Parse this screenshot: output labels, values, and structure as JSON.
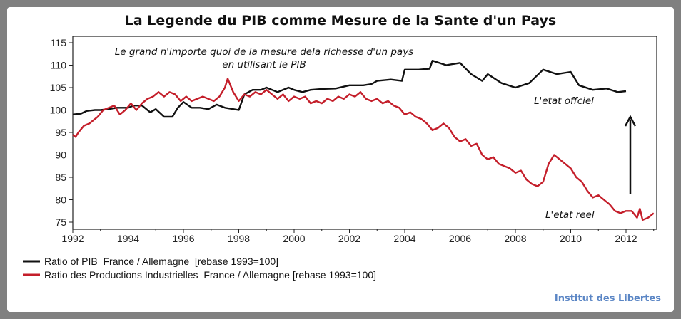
{
  "chart_data": {
    "type": "line",
    "title": "La Legende du PIB comme Mesure de la Sante d'un Pays",
    "xlim": [
      1992,
      2013
    ],
    "ylim": [
      74,
      115
    ],
    "x_ticks": [
      "1992",
      "1994",
      "1996",
      "1998",
      "2000",
      "2002",
      "2004",
      "2006",
      "2008",
      "2010",
      "2012"
    ],
    "y_ticks": [
      "75",
      "80",
      "85",
      "90",
      "95",
      "100",
      "105",
      "110",
      "115"
    ],
    "grid": false,
    "legend_position": "bottom-left",
    "annotations": {
      "top_line1": "Le grand n'importe quoi de la mesure dela richesse d'un pays",
      "top_line2": "en utilisant le PIB",
      "official": "L'etat offciel",
      "real": "L'etat reel"
    },
    "series": [
      {
        "name": "Ratio of PIB  France / Allemagne  [rebase 1993=100]",
        "color": "#111111",
        "points": [
          [
            1992.0,
            99
          ],
          [
            1992.3,
            99.2
          ],
          [
            1992.5,
            99.8
          ],
          [
            1992.8,
            100
          ],
          [
            1993.0,
            100
          ],
          [
            1993.3,
            100.2
          ],
          [
            1993.6,
            100.5
          ],
          [
            1994.0,
            100.5
          ],
          [
            1994.2,
            101
          ],
          [
            1994.5,
            101
          ],
          [
            1994.8,
            99.5
          ],
          [
            1995.0,
            100.2
          ],
          [
            1995.3,
            98.5
          ],
          [
            1995.6,
            98.5
          ],
          [
            1995.8,
            100.5
          ],
          [
            1996.0,
            101.8
          ],
          [
            1996.3,
            100.5
          ],
          [
            1996.6,
            100.5
          ],
          [
            1996.9,
            100.2
          ],
          [
            1997.2,
            101.2
          ],
          [
            1997.5,
            100.5
          ],
          [
            1997.8,
            100.2
          ],
          [
            1998.0,
            100.0
          ],
          [
            1998.2,
            103.5
          ],
          [
            1998.5,
            104.5
          ],
          [
            1998.8,
            104.5
          ],
          [
            1999.0,
            105
          ],
          [
            1999.4,
            104
          ],
          [
            1999.8,
            105
          ],
          [
            2000.0,
            104.5
          ],
          [
            2000.3,
            104
          ],
          [
            2000.6,
            104.5
          ],
          [
            2001.0,
            104.7
          ],
          [
            2001.5,
            104.8
          ],
          [
            2002.0,
            105.5
          ],
          [
            2002.5,
            105.5
          ],
          [
            2002.8,
            105.8
          ],
          [
            2003.0,
            106.5
          ],
          [
            2003.5,
            106.8
          ],
          [
            2003.9,
            106.5
          ],
          [
            2004.0,
            109
          ],
          [
            2004.5,
            109
          ],
          [
            2004.9,
            109.2
          ],
          [
            2005.0,
            111
          ],
          [
            2005.5,
            110
          ],
          [
            2006.0,
            110.5
          ],
          [
            2006.4,
            108
          ],
          [
            2006.8,
            106.5
          ],
          [
            2007.0,
            108
          ],
          [
            2007.5,
            106
          ],
          [
            2008.0,
            105
          ],
          [
            2008.5,
            106
          ],
          [
            2009.0,
            109
          ],
          [
            2009.5,
            108
          ],
          [
            2010.0,
            108.5
          ],
          [
            2010.3,
            105.5
          ],
          [
            2010.8,
            104.5
          ],
          [
            2011.3,
            104.8
          ],
          [
            2011.7,
            104
          ],
          [
            2012.0,
            104.2
          ]
        ]
      },
      {
        "name": "Ratio des Productions Industrielles  France / Allemagne [rebase 1993=100]",
        "color": "#c41e2a",
        "points": [
          [
            1992.0,
            94.5
          ],
          [
            1992.1,
            94
          ],
          [
            1992.2,
            95
          ],
          [
            1992.4,
            96.5
          ],
          [
            1992.6,
            97
          ],
          [
            1992.9,
            98.5
          ],
          [
            1993.1,
            100
          ],
          [
            1993.3,
            100.5
          ],
          [
            1993.5,
            101
          ],
          [
            1993.7,
            99
          ],
          [
            1993.9,
            100
          ],
          [
            1994.1,
            101.5
          ],
          [
            1994.3,
            100
          ],
          [
            1994.5,
            101.5
          ],
          [
            1994.7,
            102.5
          ],
          [
            1994.9,
            103
          ],
          [
            1995.1,
            104
          ],
          [
            1995.3,
            103
          ],
          [
            1995.5,
            104
          ],
          [
            1995.7,
            103.5
          ],
          [
            1995.9,
            102
          ],
          [
            1996.1,
            103
          ],
          [
            1996.3,
            102
          ],
          [
            1996.5,
            102.5
          ],
          [
            1996.7,
            103
          ],
          [
            1996.9,
            102.5
          ],
          [
            1997.1,
            102
          ],
          [
            1997.3,
            103
          ],
          [
            1997.5,
            105
          ],
          [
            1997.6,
            107
          ],
          [
            1997.8,
            104
          ],
          [
            1998.0,
            102
          ],
          [
            1998.2,
            103.5
          ],
          [
            1998.4,
            103
          ],
          [
            1998.6,
            104
          ],
          [
            1998.8,
            103.5
          ],
          [
            1999.0,
            104.5
          ],
          [
            1999.2,
            103.5
          ],
          [
            1999.4,
            102.5
          ],
          [
            1999.6,
            103.5
          ],
          [
            1999.8,
            102
          ],
          [
            2000.0,
            103
          ],
          [
            2000.2,
            102.5
          ],
          [
            2000.4,
            103
          ],
          [
            2000.6,
            101.5
          ],
          [
            2000.8,
            102
          ],
          [
            2001.0,
            101.5
          ],
          [
            2001.2,
            102.5
          ],
          [
            2001.4,
            102
          ],
          [
            2001.6,
            103
          ],
          [
            2001.8,
            102.5
          ],
          [
            2002.0,
            103.5
          ],
          [
            2002.2,
            103
          ],
          [
            2002.4,
            104
          ],
          [
            2002.6,
            102.5
          ],
          [
            2002.8,
            102
          ],
          [
            2003.0,
            102.5
          ],
          [
            2003.2,
            101.5
          ],
          [
            2003.4,
            102
          ],
          [
            2003.6,
            101
          ],
          [
            2003.8,
            100.5
          ],
          [
            2004.0,
            99
          ],
          [
            2004.2,
            99.5
          ],
          [
            2004.4,
            98.5
          ],
          [
            2004.6,
            98
          ],
          [
            2004.8,
            97
          ],
          [
            2005.0,
            95.5
          ],
          [
            2005.2,
            96
          ],
          [
            2005.4,
            97
          ],
          [
            2005.6,
            96
          ],
          [
            2005.8,
            94
          ],
          [
            2006.0,
            93
          ],
          [
            2006.2,
            93.5
          ],
          [
            2006.4,
            92
          ],
          [
            2006.6,
            92.5
          ],
          [
            2006.8,
            90
          ],
          [
            2007.0,
            89
          ],
          [
            2007.2,
            89.5
          ],
          [
            2007.4,
            88
          ],
          [
            2007.6,
            87.5
          ],
          [
            2007.8,
            87
          ],
          [
            2008.0,
            86
          ],
          [
            2008.2,
            86.5
          ],
          [
            2008.4,
            84.5
          ],
          [
            2008.6,
            83.5
          ],
          [
            2008.8,
            83
          ],
          [
            2009.0,
            84
          ],
          [
            2009.2,
            88
          ],
          [
            2009.4,
            90
          ],
          [
            2009.6,
            89
          ],
          [
            2009.8,
            88
          ],
          [
            2010.0,
            87
          ],
          [
            2010.2,
            85
          ],
          [
            2010.4,
            84
          ],
          [
            2010.6,
            82
          ],
          [
            2010.8,
            80.5
          ],
          [
            2011.0,
            81
          ],
          [
            2011.2,
            80
          ],
          [
            2011.4,
            79
          ],
          [
            2011.6,
            77.5
          ],
          [
            2011.8,
            77
          ],
          [
            2012.0,
            77.5
          ],
          [
            2012.2,
            77.5
          ],
          [
            2012.4,
            76
          ],
          [
            2012.5,
            78
          ],
          [
            2012.6,
            75.5
          ],
          [
            2012.8,
            76
          ],
          [
            2013.0,
            77
          ]
        ]
      }
    ]
  },
  "credit": "Institut des Libertes"
}
